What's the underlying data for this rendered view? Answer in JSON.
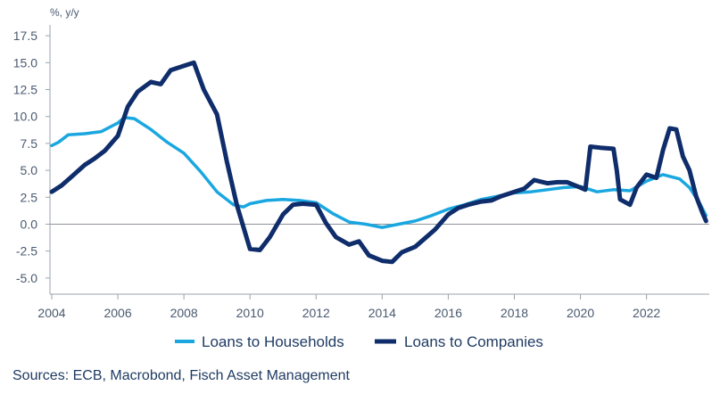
{
  "chart_data": {
    "type": "line",
    "unit_label": "%, y/y",
    "source": "Sources: ECB, Macrobond, Fisch Asset Management",
    "ylim": [
      -6.5,
      18.5
    ],
    "yticks": [
      -5.0,
      -2.5,
      0.0,
      2.5,
      5.0,
      7.5,
      10.0,
      12.5,
      15.0,
      17.5
    ],
    "ytick_labels": [
      "-5.0",
      "-2.5",
      "0.0",
      "2.5",
      "5.0",
      "7.5",
      "10.0",
      "12.5",
      "15.0",
      "17.5"
    ],
    "xlim": [
      2004.0,
      2023.9
    ],
    "xticks": [
      2004,
      2006,
      2008,
      2010,
      2012,
      2014,
      2016,
      2018,
      2020,
      2022
    ],
    "xtick_labels": [
      "2004",
      "2006",
      "2008",
      "2010",
      "2012",
      "2014",
      "2016",
      "2018",
      "2020",
      "2022"
    ],
    "zero_line": true,
    "legend_position": "bottom",
    "series": [
      {
        "name": "Loans to Households",
        "color": "#1aa7e0",
        "x": [
          2004.0,
          2004.2,
          2004.5,
          2005.0,
          2005.5,
          2006.0,
          2006.2,
          2006.5,
          2007.0,
          2007.5,
          2008.0,
          2008.5,
          2009.0,
          2009.5,
          2009.8,
          2010.0,
          2010.5,
          2011.0,
          2011.5,
          2012.0,
          2012.5,
          2013.0,
          2013.5,
          2014.0,
          2014.5,
          2015.0,
          2015.5,
          2016.0,
          2016.5,
          2017.0,
          2017.5,
          2018.0,
          2018.5,
          2019.0,
          2019.5,
          2020.0,
          2020.5,
          2021.0,
          2021.5,
          2022.0,
          2022.5,
          2023.0,
          2023.3,
          2023.6,
          2023.8
        ],
        "values": [
          7.3,
          7.6,
          8.3,
          8.4,
          8.6,
          9.4,
          9.9,
          9.8,
          8.8,
          7.6,
          6.6,
          4.9,
          3.0,
          1.8,
          1.6,
          1.9,
          2.2,
          2.3,
          2.2,
          2.0,
          1.0,
          0.2,
          0.0,
          -0.3,
          0.0,
          0.3,
          0.8,
          1.4,
          1.8,
          2.3,
          2.6,
          2.9,
          3.0,
          3.2,
          3.4,
          3.5,
          3.0,
          3.2,
          3.1,
          4.0,
          4.6,
          4.2,
          3.4,
          2.0,
          0.8
        ]
      },
      {
        "name": "Loans to Companies",
        "color": "#0f2d6b",
        "x": [
          2004.0,
          2004.3,
          2004.6,
          2005.0,
          2005.3,
          2005.6,
          2006.0,
          2006.3,
          2006.6,
          2007.0,
          2007.3,
          2007.6,
          2008.0,
          2008.3,
          2008.6,
          2009.0,
          2009.3,
          2009.6,
          2010.0,
          2010.3,
          2010.6,
          2011.0,
          2011.3,
          2011.6,
          2012.0,
          2012.3,
          2012.6,
          2013.0,
          2013.3,
          2013.6,
          2014.0,
          2014.3,
          2014.6,
          2015.0,
          2015.3,
          2015.6,
          2016.0,
          2016.3,
          2016.6,
          2017.0,
          2017.3,
          2017.6,
          2018.0,
          2018.3,
          2018.6,
          2019.0,
          2019.3,
          2019.6,
          2020.0,
          2020.15,
          2020.3,
          2020.6,
          2021.0,
          2021.1,
          2021.2,
          2021.5,
          2021.7,
          2022.0,
          2022.3,
          2022.5,
          2022.7,
          2022.9,
          2023.1,
          2023.3,
          2023.5,
          2023.7,
          2023.8
        ],
        "values": [
          3.0,
          3.6,
          4.4,
          5.5,
          6.1,
          6.8,
          8.2,
          10.9,
          12.3,
          13.2,
          13.0,
          14.3,
          14.7,
          15.0,
          12.5,
          10.2,
          5.8,
          1.8,
          -2.3,
          -2.4,
          -1.2,
          0.9,
          1.8,
          1.9,
          1.8,
          0.1,
          -1.2,
          -1.9,
          -1.6,
          -2.9,
          -3.4,
          -3.5,
          -2.6,
          -2.1,
          -1.3,
          -0.5,
          0.9,
          1.5,
          1.8,
          2.1,
          2.2,
          2.6,
          3.0,
          3.3,
          4.1,
          3.8,
          3.9,
          3.9,
          3.4,
          3.2,
          7.2,
          7.1,
          7.0,
          5.0,
          2.3,
          1.8,
          3.4,
          4.6,
          4.3,
          6.9,
          8.9,
          8.8,
          6.3,
          5.0,
          2.6,
          1.0,
          0.3
        ]
      }
    ]
  }
}
